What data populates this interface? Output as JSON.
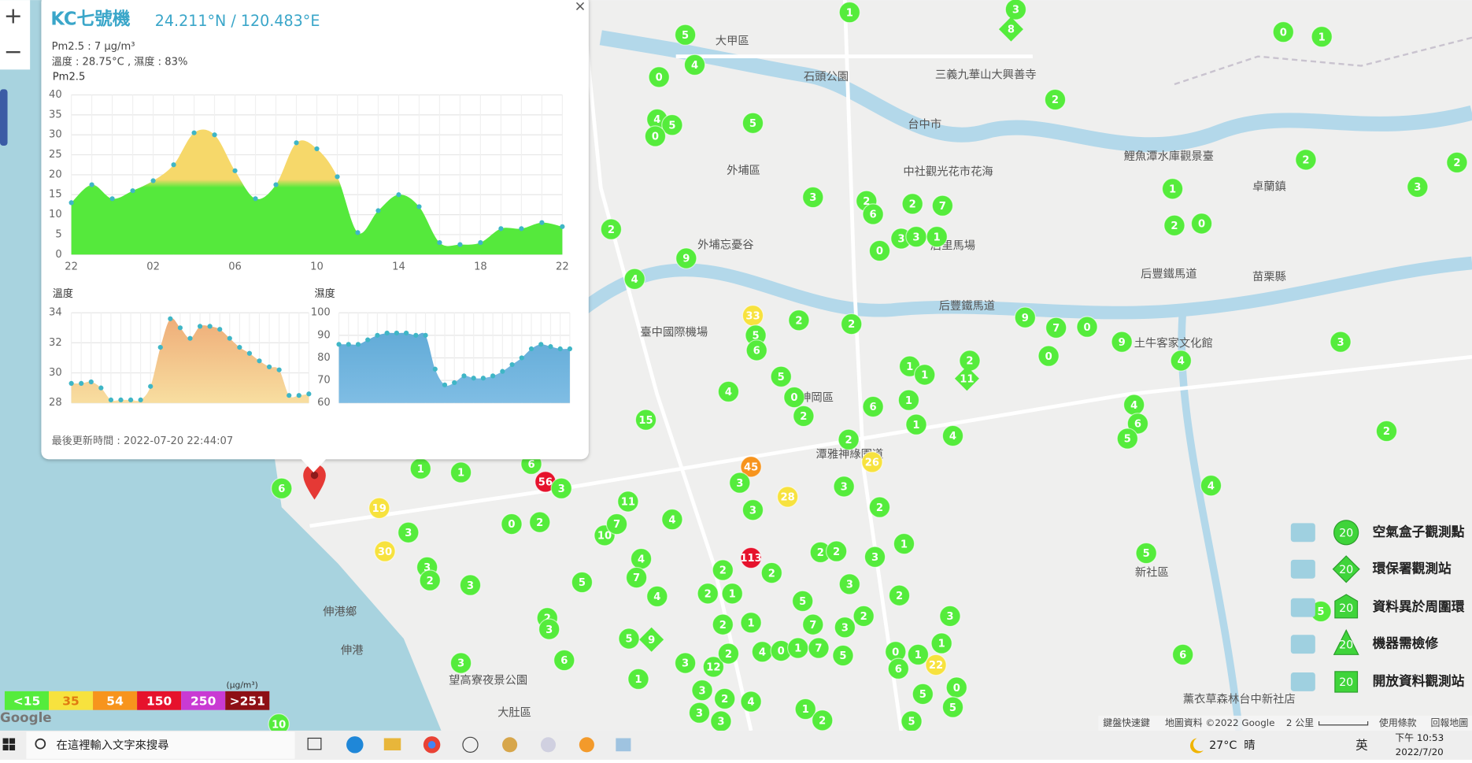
{
  "popup": {
    "title": "KC七號機",
    "coords": "24.211°N / 120.483°E",
    "close": "×",
    "pm_text": "Pm2.5 : 7 μg/m³",
    "env_text": "溫度 : 28.75°C , 濕度 : 83%",
    "updated": "最後更新時間 : 2022-07-20 22:44:07"
  },
  "chart_data": [
    {
      "type": "area",
      "title": "Pm2.5",
      "categories": [
        "22",
        null,
        null,
        null,
        "02",
        null,
        null,
        null,
        "06",
        null,
        null,
        null,
        "10",
        null,
        null,
        null,
        "14",
        null,
        null,
        null,
        "18",
        null,
        null,
        null,
        "22"
      ],
      "values": [
        13,
        17.5,
        14,
        16,
        18.5,
        22.5,
        30.5,
        30,
        21,
        14,
        17.5,
        28,
        26.5,
        19.5,
        5.5,
        11,
        15,
        12,
        3,
        2.5,
        3,
        6.5,
        6.5,
        8,
        7
      ],
      "ylim": [
        0,
        40
      ],
      "yticks": [
        0,
        5,
        10,
        15,
        20,
        25,
        30,
        35,
        40
      ],
      "color": "#55e93c",
      "color2": "#f6d86a",
      "grid": true
    },
    {
      "type": "area",
      "title": "溫度",
      "categories": [
        null,
        null,
        null,
        null,
        null,
        null,
        null,
        null,
        null,
        null,
        null,
        null,
        null,
        null,
        null,
        null,
        null,
        null,
        null,
        null,
        null,
        null,
        null,
        null,
        null
      ],
      "values": [
        29.3,
        29.3,
        29.4,
        29,
        28.2,
        28.2,
        28.2,
        28.2,
        29.1,
        31.7,
        33.6,
        33,
        32.3,
        33.1,
        33.1,
        32.9,
        32.3,
        31.7,
        31.3,
        30.8,
        30.4,
        30.2,
        28.5,
        28.5,
        28.6
      ],
      "ylim": [
        28,
        34
      ],
      "yticks": [
        28,
        30,
        32,
        34
      ],
      "color": "#f8dea0",
      "color2": "#eeaa76",
      "grid": true
    },
    {
      "type": "area",
      "title": "濕度",
      "categories": [
        null,
        null,
        null,
        null,
        null,
        null,
        null,
        null,
        null,
        null,
        null,
        null,
        null,
        null,
        null,
        null,
        null,
        null,
        null,
        null,
        null,
        null,
        null,
        null,
        null
      ],
      "values": [
        86,
        86,
        86,
        88,
        90,
        91,
        91,
        91,
        90,
        90,
        75,
        68,
        69,
        72,
        71,
        71,
        72,
        74,
        77,
        80,
        84,
        86,
        85,
        84,
        84
      ],
      "ylim": [
        60,
        100
      ],
      "yticks": [
        60,
        70,
        80,
        90,
        100
      ],
      "color": "#7fbde4",
      "color2": "#5aa6d4",
      "grid": true
    }
  ],
  "color_scale": {
    "unit": "(μg/m³)",
    "items": [
      {
        "value": 15,
        "label": "<15",
        "color": "#55ec3c"
      },
      {
        "value": 35,
        "color": "#f7e23e"
      },
      {
        "value": 54,
        "color": "#f7941d"
      },
      {
        "value": 150,
        "color": "#e6122c"
      },
      {
        "value": 250,
        "color": "#c93ad3"
      },
      {
        "value": 251,
        "label": ">251",
        "color": "#8e0f15"
      }
    ]
  },
  "markers": {
    "values": [
      1,
      5,
      4,
      0,
      4,
      5,
      0,
      5,
      3,
      0,
      1,
      2,
      2,
      2,
      3,
      1,
      2,
      0,
      3,
      2,
      6,
      2,
      7,
      3,
      3,
      1,
      0,
      2,
      9,
      4,
      33,
      5,
      6,
      2,
      2,
      9,
      7,
      0,
      9,
      0,
      4,
      3,
      1,
      1,
      2,
      5,
      0,
      2,
      4,
      6,
      1,
      1,
      4,
      4,
      6,
      5,
      2,
      4,
      15,
      2,
      26,
      45,
      28,
      56,
      3,
      6,
      1,
      1,
      19,
      3,
      30,
      3,
      2,
      3,
      0,
      2,
      11,
      4,
      10,
      7,
      3,
      3,
      3,
      2,
      1,
      3,
      2,
      2,
      113,
      2,
      2,
      1,
      2,
      4,
      7,
      4,
      5,
      2,
      3,
      6,
      3,
      5,
      3,
      12,
      2,
      4,
      0,
      1,
      7,
      5,
      0,
      1,
      22,
      1,
      3,
      0,
      5,
      5,
      6,
      3,
      2,
      4,
      1,
      2,
      3,
      3,
      5,
      5,
      6,
      5,
      5,
      7,
      3,
      2,
      3,
      2,
      1,
      1,
      2,
      6,
      10
    ]
  },
  "epa_markers": {
    "values": [
      8,
      11,
      9
    ]
  },
  "legend": {
    "items": [
      {
        "badge": "20",
        "label": "空氣盒子觀測點"
      },
      {
        "badge": "20",
        "label": "環保署觀測站"
      },
      {
        "badge": "20",
        "label": "資料異於周圍環"
      },
      {
        "badge": "20",
        "label": "機器需檢修"
      },
      {
        "badge": "20",
        "label": "開放資料觀測站"
      }
    ]
  },
  "map_labels": [
    "大甲區",
    "外埔區",
    "后里馬場",
    "卓蘭鎮",
    "苗栗縣",
    "后豐鐵馬道",
    "臺中國際機場",
    "神岡區",
    "新社區",
    "大肚區",
    "伸港鄉",
    "伸港",
    "石頭公園",
    "外埔忘憂谷",
    "中社觀光花市花海",
    "鯉魚潭水庫觀景臺",
    "三義九華山大興善寺",
    "土牛客家文化館",
    "望高寮夜景公園",
    "薰衣草森林台中新社店",
    "潭雅神綠園道",
    "台中市",
    "后豐鐵馬道"
  ],
  "map_footer": {
    "logo": "Google",
    "shortcuts": "鍵盤快速鍵",
    "data": "地圖資料 ©2022 Google",
    "scale": "2 公里",
    "terms": "使用條款",
    "report": "回報地圖"
  },
  "zoom": {
    "in": "+",
    "out": "−"
  },
  "taskbar": {
    "search": "在這裡輸入文字來搜尋",
    "temp": "27°C",
    "weather": "晴",
    "ime": "英",
    "time": "下午 10:53",
    "date": "2022/7/20"
  }
}
